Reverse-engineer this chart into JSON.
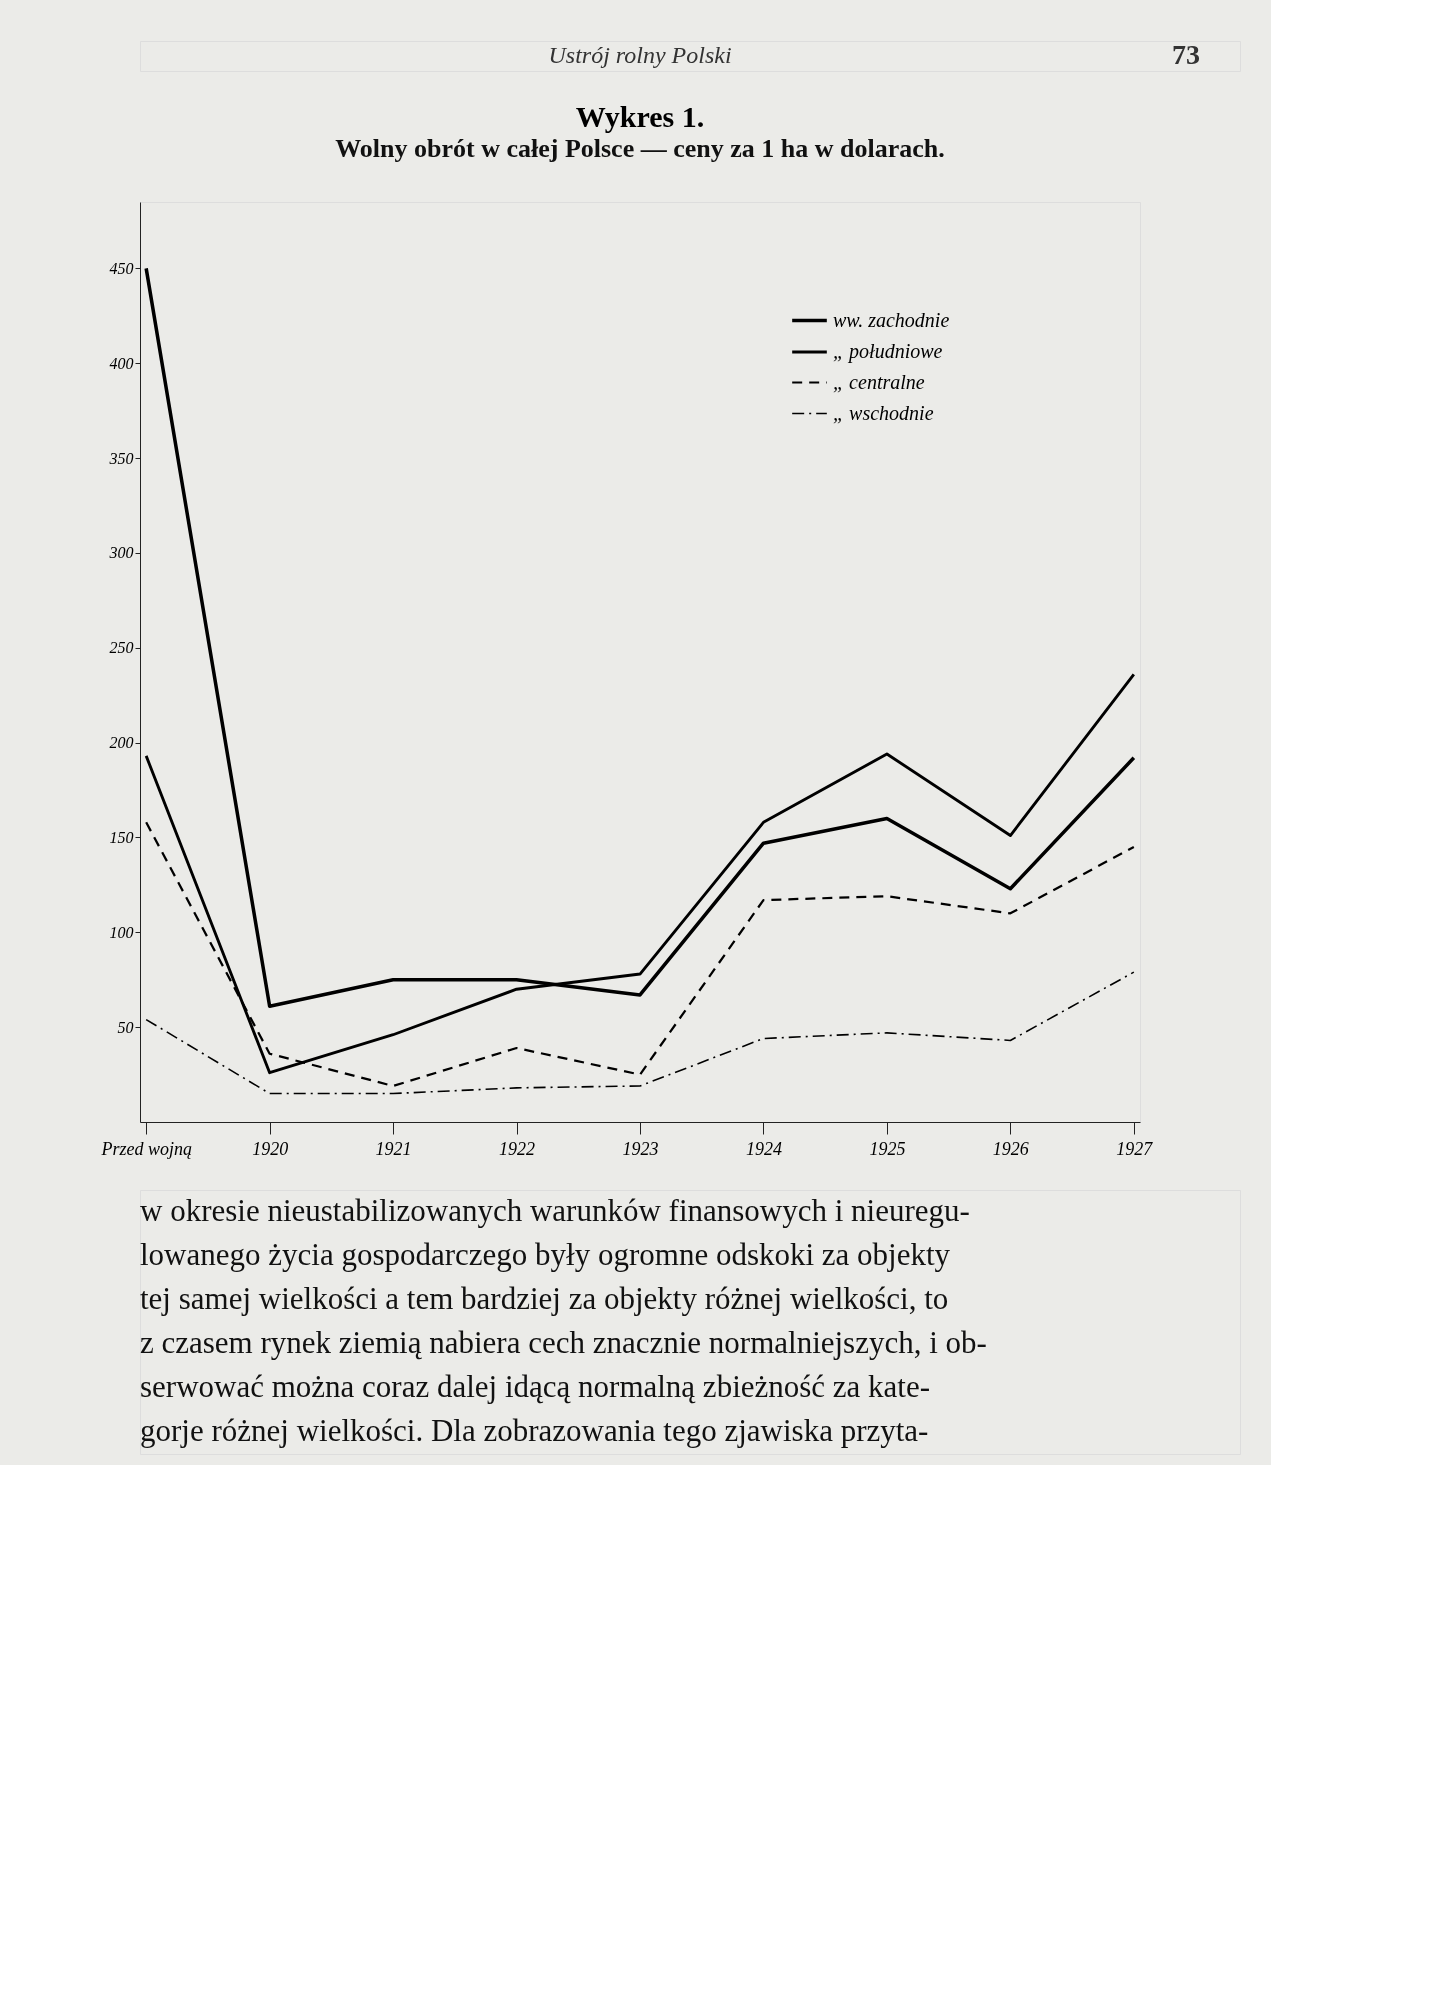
{
  "chart_data": {
    "type": "line",
    "title": "Wykres 1.",
    "subtitle": "Wolny obrót w całej Polsce — ceny za 1 ha w dolarach.",
    "categories": [
      "Przed wojną",
      "1920",
      "1921",
      "1922",
      "1923",
      "1924",
      "1925",
      "1926",
      "1927"
    ],
    "series": [
      {
        "name": "ww. zachodnie",
        "color": "#000000",
        "line_style": "solid",
        "values": [
          450,
          61,
          75,
          75,
          67,
          147,
          160,
          123,
          192
        ]
      },
      {
        "name": "„ południowe",
        "color": "#000000",
        "line_style": "solid",
        "values": [
          193,
          26,
          46,
          70,
          78,
          158,
          194,
          151,
          236
        ]
      },
      {
        "name": "„ centralne",
        "color": "#000000",
        "line_style": "dashed",
        "values": [
          158,
          36,
          19,
          39,
          25,
          117,
          119,
          110,
          145
        ]
      },
      {
        "name": "„ wschodnie",
        "color": "#000000",
        "line_style": "dashdot",
        "values": [
          54,
          15,
          15,
          18,
          19,
          44,
          47,
          43,
          79
        ]
      }
    ],
    "ylim": [
      0,
      485
    ],
    "yticks": [
      50,
      100,
      150,
      200,
      250,
      300,
      350,
      400,
      450
    ],
    "grid": false,
    "legend": "top right",
    "annotations": [
      "Ustrój rolny Polski",
      "73",
      "w okresie nieustabilizowanych warunków finansowych i nieuregu-",
      "lowanego życia gospodarczego były ogromne odskoki za objekty",
      "tej samej wielkości a tem bardziej za objekty różnej wielkości, to",
      "z czasem rynek ziemią nabiera cech znacznie normalniejszych, i ob-",
      "serwować można coraz dalej idącą normalną zbieżność za kate-",
      "gorje różnej wielkości. Dla zobrazowania tego zjawiska przyta-"
    ]
  }
}
